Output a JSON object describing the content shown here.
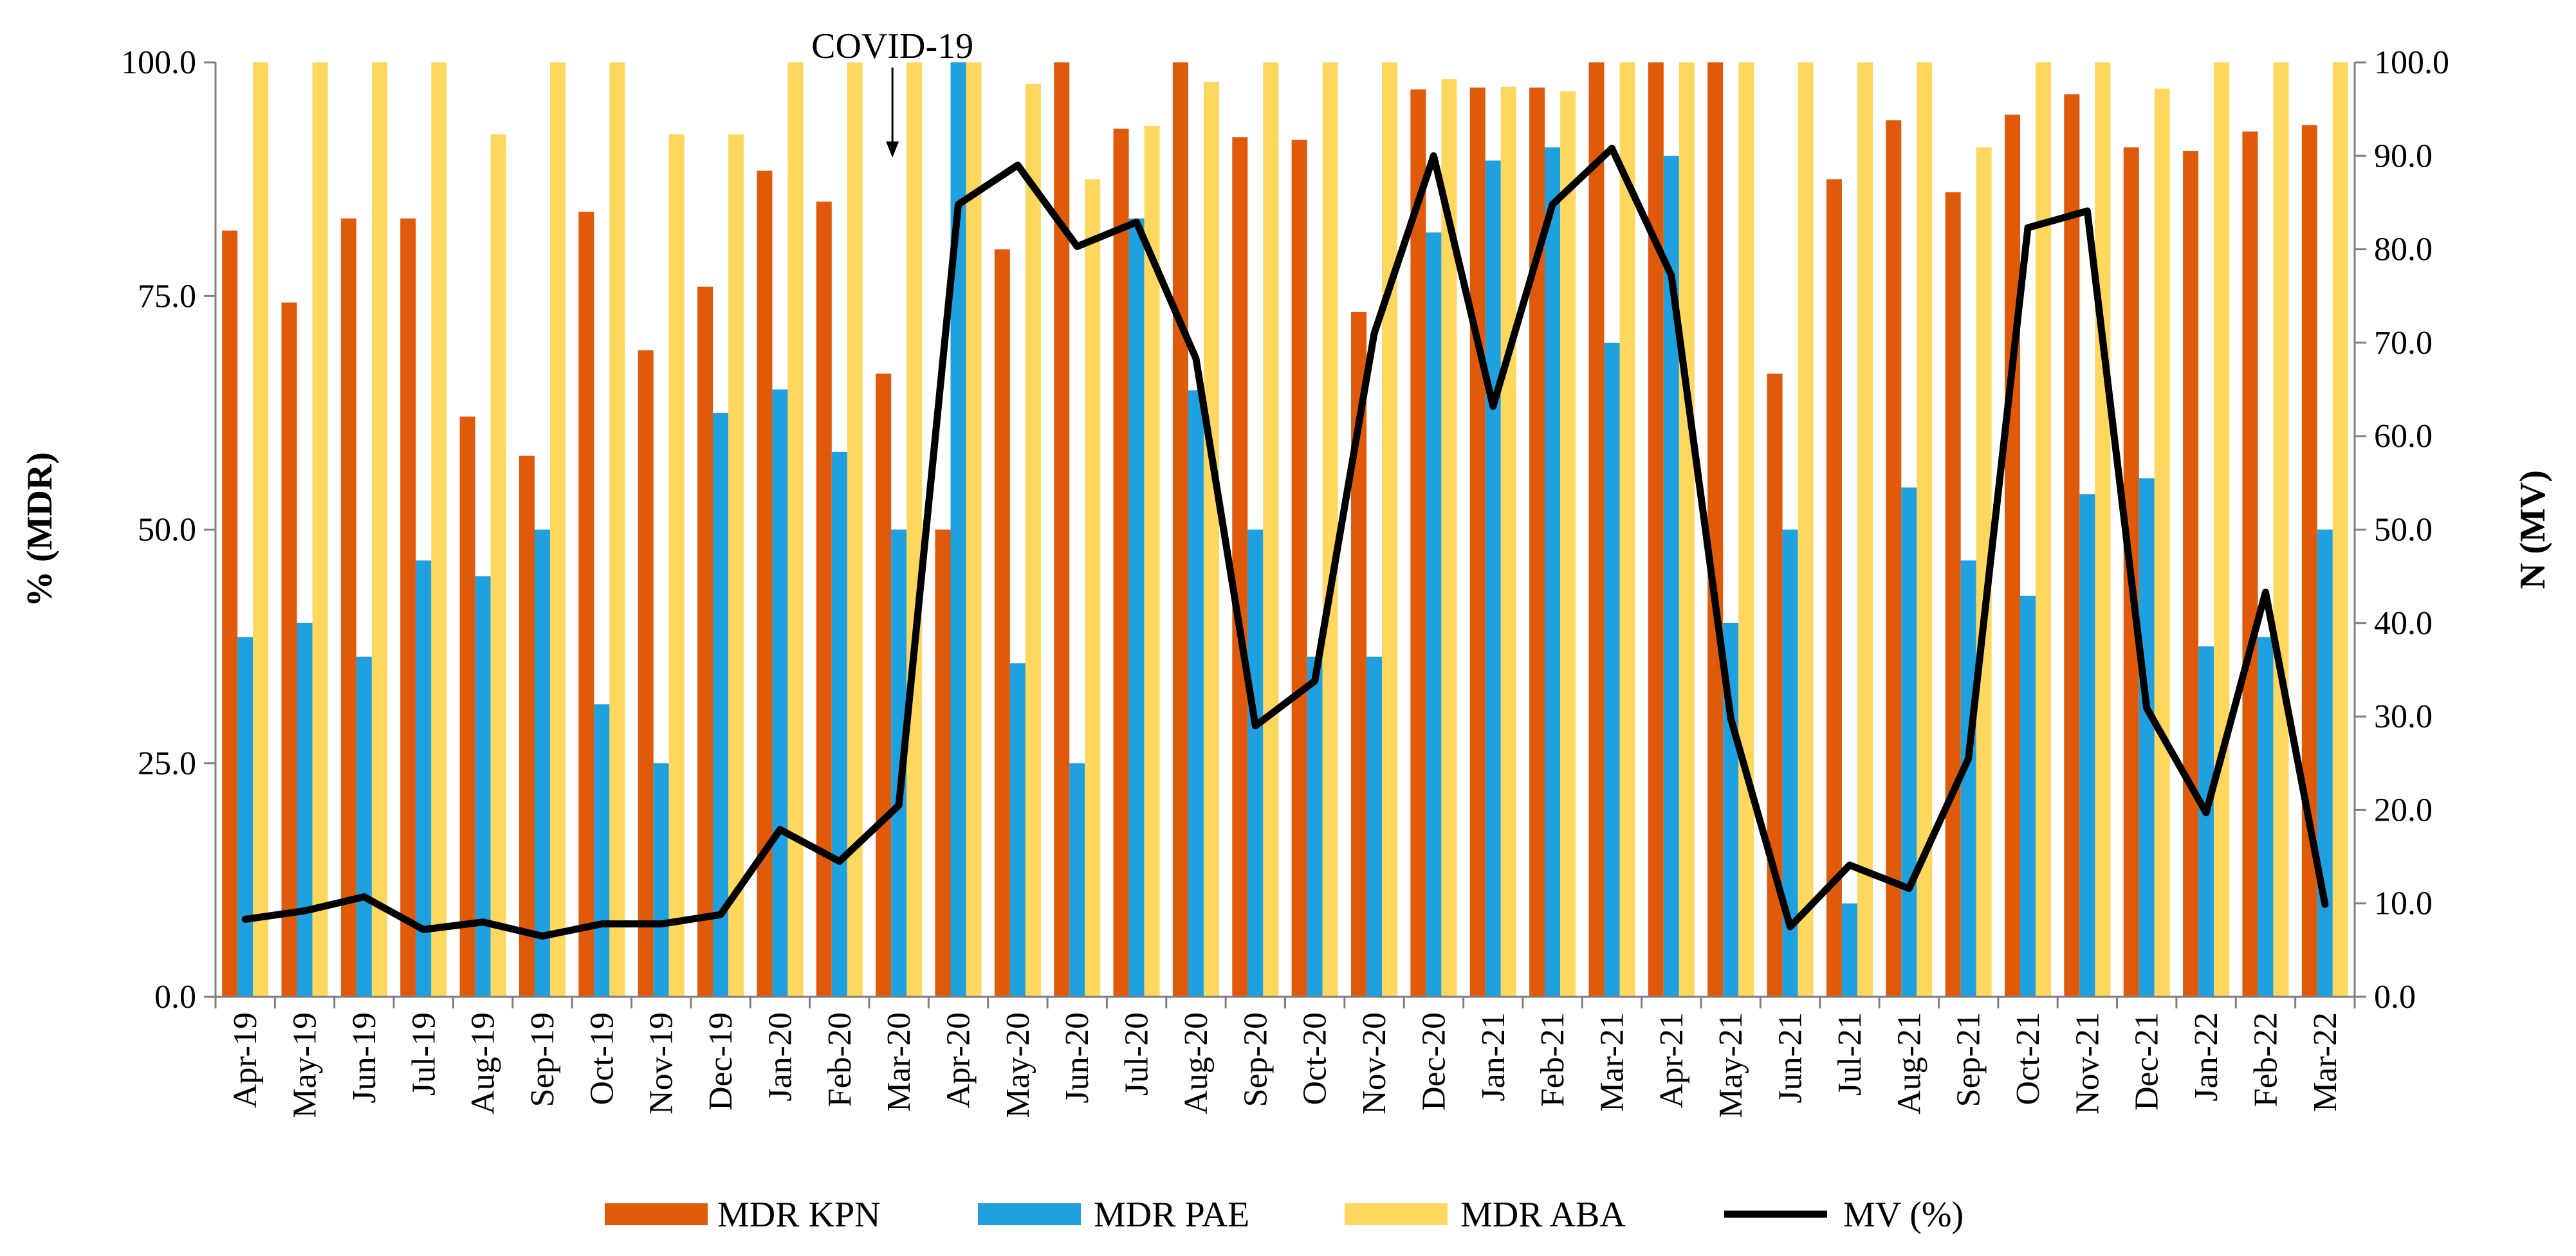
{
  "chart_data": {
    "type": "bar",
    "categories": [
      "Apr-19",
      "May-19",
      "Jun-19",
      "Jul-19",
      "Aug-19",
      "Sep-19",
      "Oct-19",
      "Nov-19",
      "Dec-19",
      "Jan-20",
      "Feb-20",
      "Mar-20",
      "Apr-20",
      "May-20",
      "Jun-20",
      "Jul-20",
      "Aug-20",
      "Sep-20",
      "Oct-20",
      "Nov-20",
      "Dec-20",
      "Jan-21",
      "Feb-21",
      "Mar-21",
      "Apr-21",
      "May-21",
      "Jun-21",
      "Jul-21",
      "Aug-21",
      "Sep-21",
      "Oct-21",
      "Nov-21",
      "Dec-21",
      "Jan-22",
      "Feb-22",
      "Mar-22"
    ],
    "series": [
      {
        "name": "MDR KPN",
        "type": "bar",
        "axis": "left",
        "color": "#E05A0C",
        "values": [
          82.0,
          74.3,
          83.3,
          83.3,
          62.1,
          57.9,
          84.0,
          69.2,
          76.0,
          88.4,
          85.1,
          66.7,
          50.0,
          80.0,
          100.0,
          92.9,
          100.0,
          92.0,
          91.7,
          73.3,
          97.1,
          97.3,
          97.3,
          100.0,
          100.0,
          100.0,
          66.7,
          87.5,
          93.8,
          86.1,
          94.4,
          96.6,
          90.9,
          90.5,
          92.6,
          93.3
        ]
      },
      {
        "name": "MDR PAE",
        "type": "bar",
        "axis": "left",
        "color": "#1FA0DF",
        "values": [
          38.5,
          40.0,
          36.4,
          46.7,
          45.0,
          50.0,
          31.3,
          25.0,
          62.5,
          65.0,
          58.3,
          50.0,
          100.0,
          35.7,
          25.0,
          83.3,
          64.9,
          50.0,
          36.4,
          36.4,
          81.8,
          89.5,
          90.9,
          70.0,
          90.0,
          40.0,
          50.0,
          10.0,
          54.5,
          46.7,
          42.9,
          53.8,
          55.5,
          37.5,
          38.5,
          50.0
        ]
      },
      {
        "name": "MDR ABA",
        "type": "bar",
        "axis": "left",
        "color": "#FDD75E",
        "values": [
          100.0,
          100.0,
          100.0,
          100.0,
          92.3,
          100.0,
          100.0,
          92.3,
          92.3,
          100.0,
          100.0,
          100.0,
          100.0,
          97.7,
          87.5,
          93.2,
          97.9,
          100.0,
          100.0,
          100.0,
          98.2,
          97.4,
          96.9,
          100.0,
          100.0,
          100.0,
          100.0,
          100.0,
          100.0,
          90.9,
          100.0,
          100.0,
          97.2,
          100.0,
          100.0,
          100.0
        ]
      },
      {
        "name": "MV (%)",
        "type": "line",
        "axis": "right",
        "color": "#000000",
        "values": [
          8.3,
          9.2,
          10.7,
          7.2,
          8.0,
          6.5,
          7.8,
          7.8,
          8.8,
          17.9,
          14.5,
          20.5,
          84.8,
          89.0,
          80.3,
          82.9,
          68.3,
          29.0,
          33.8,
          71.0,
          90.0,
          63.2,
          84.8,
          90.8,
          77.2,
          29.8,
          7.5,
          14.1,
          11.6,
          25.5,
          82.3,
          84.1,
          30.9,
          19.7,
          43.3,
          9.9
        ]
      }
    ],
    "left_axis": {
      "label": "% (MDR)",
      "ylim": [
        0,
        100
      ],
      "ticks": [
        "0.0",
        "25.0",
        "50.0",
        "75.0",
        "100.0"
      ],
      "tick_values": [
        0,
        25,
        50,
        75,
        100
      ]
    },
    "right_axis": {
      "label": "N (MV)",
      "ylim": [
        0,
        100
      ],
      "ticks": [
        "0.0",
        "10.0",
        "20.0",
        "30.0",
        "40.0",
        "50.0",
        "60.0",
        "70.0",
        "80.0",
        "90.0",
        "100.0"
      ],
      "tick_values": [
        0,
        10,
        20,
        30,
        40,
        50,
        60,
        70,
        80,
        90,
        100
      ]
    },
    "annotation": {
      "text": "COVID-19",
      "category": "Mar-20"
    },
    "grid": false,
    "legend_position": "bottom"
  }
}
